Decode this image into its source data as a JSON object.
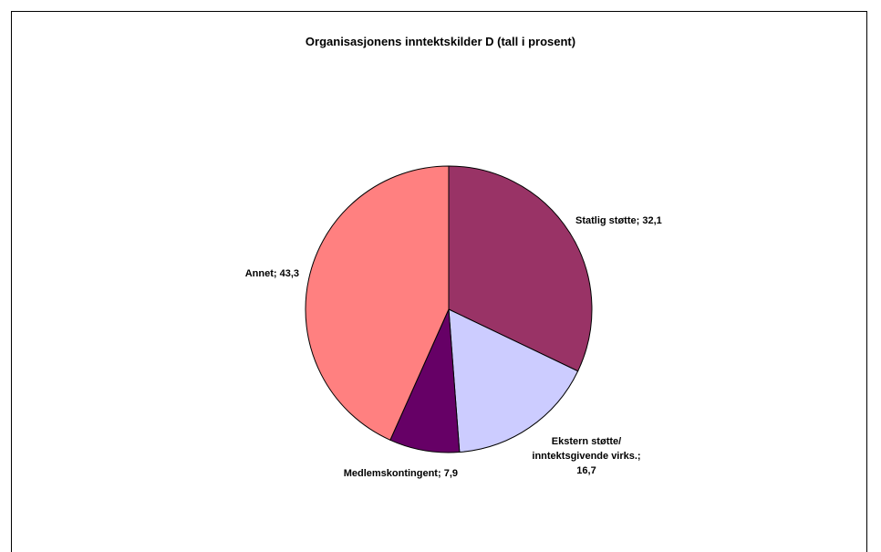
{
  "chart_data": {
    "type": "pie",
    "title": "Organisasjonens inntektskilder D (tall i prosent)",
    "categories": [
      "Statlig støtte;",
      "Ekstern støtte/ inntektsgivende virks.;",
      "Medlemskontingent;",
      "Annet;"
    ],
    "values": [
      32.1,
      16.7,
      7.9,
      43.3
    ],
    "value_labels": [
      "32,1",
      "16,7",
      "7,9",
      "43,3"
    ],
    "colors": [
      "#993366",
      "#ccccff",
      "#660066",
      "#ff8080"
    ]
  }
}
